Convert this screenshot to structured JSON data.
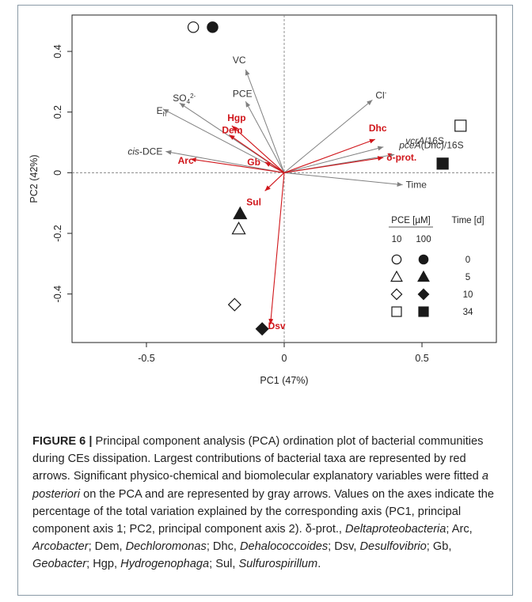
{
  "chart_data": {
    "type": "scatter",
    "xlabel": "PC1 (47%)",
    "ylabel": "PC2 (42%)",
    "xlim": [
      -0.77,
      0.77
    ],
    "ylim": [
      -0.56,
      0.52
    ],
    "xticks": [
      -0.5,
      0,
      0.5
    ],
    "yticks": [
      -0.4,
      -0.2,
      0,
      0.2,
      0.4
    ],
    "xtick_labels": [
      "-0.5",
      "0",
      "0.5"
    ],
    "ytick_labels": [
      "-0.4",
      "-0.2",
      "0",
      "0.2",
      "0.4"
    ],
    "reference_lines": "dashed lines at x = 0 and y = 0",
    "samples": [
      {
        "pce": "10",
        "time": "0",
        "shape": "circle",
        "filled": false,
        "x": -0.33,
        "y": 0.48
      },
      {
        "pce": "100",
        "time": "0",
        "shape": "circle",
        "filled": true,
        "x": -0.26,
        "y": 0.48
      },
      {
        "pce": "100",
        "time": "5",
        "shape": "triangle",
        "filled": true,
        "x": -0.16,
        "y": -0.135
      },
      {
        "pce": "10",
        "time": "5",
        "shape": "triangle",
        "filled": false,
        "x": -0.165,
        "y": -0.185
      },
      {
        "pce": "10",
        "time": "10",
        "shape": "diamond",
        "filled": false,
        "x": -0.18,
        "y": -0.435
      },
      {
        "pce": "100",
        "time": "10",
        "shape": "diamond",
        "filled": true,
        "x": -0.08,
        "y": -0.515
      },
      {
        "pce": "10",
        "time": "34",
        "shape": "square",
        "filled": false,
        "x": 0.64,
        "y": 0.155
      },
      {
        "pce": "100",
        "time": "34",
        "shape": "square",
        "filled": true,
        "x": 0.575,
        "y": 0.03
      }
    ],
    "taxa_arrows": [
      {
        "label": "Hgp",
        "x": -0.19,
        "y": 0.155
      },
      {
        "label": "Dem",
        "x": -0.2,
        "y": 0.125
      },
      {
        "label": "Arc",
        "x": -0.34,
        "y": 0.045
      },
      {
        "label": "Gb",
        "x": -0.07,
        "y": 0.035
      },
      {
        "label": "Sul",
        "x": -0.07,
        "y": -0.06
      },
      {
        "label": "Dhc",
        "x": 0.33,
        "y": 0.11
      },
      {
        "label": "δ-prot.",
        "x": 0.36,
        "y": 0.05
      },
      {
        "label": "Dsv",
        "x": -0.05,
        "y": -0.5
      }
    ],
    "variable_arrows": [
      {
        "label": "VC",
        "x": -0.14,
        "y": 0.34
      },
      {
        "label": "PCE",
        "x": -0.14,
        "y": 0.235
      },
      {
        "label": "SO4 2-",
        "x": -0.38,
        "y": 0.23
      },
      {
        "label": "Eh",
        "x": -0.44,
        "y": 0.21
      },
      {
        "label": "cis-DCE",
        "x": -0.43,
        "y": 0.07
      },
      {
        "label": "Cl-",
        "x": 0.32,
        "y": 0.24
      },
      {
        "label": "vcrA/16S",
        "x": 0.36,
        "y": 0.085
      },
      {
        "label": "pceA(Dhc)/16S",
        "x": 0.4,
        "y": 0.06
      },
      {
        "label": "Time",
        "x": 0.43,
        "y": -0.04
      }
    ],
    "legend": {
      "position": "bottom-right",
      "col_pce": "PCE [µM]",
      "col_time": "Time [d]",
      "pce_levels": [
        "10",
        "100"
      ],
      "rows": [
        {
          "shape": "circle",
          "time": "0"
        },
        {
          "shape": "triangle",
          "time": "5"
        },
        {
          "shape": "diamond",
          "time": "10"
        },
        {
          "shape": "square",
          "time": "34"
        }
      ]
    },
    "colors": {
      "taxa": "#d0161b",
      "variables": "#808080",
      "points": "#1a1a1a",
      "frame": "#222222"
    }
  },
  "caption": {
    "label": "FIGURE 6 |",
    "text_1": " Principal component analysis (PCA) ordination plot of bacterial communities during CEs dissipation. Largest contributions of bacterial taxa are represented by red arrows. Significant physico-chemical and biomolecular explanatory variables were fitted ",
    "text_italic_1": "a posteriori",
    "text_2": " on the PCA and are represented by gray arrows. Values on the axes indicate the percentage of the total variation explained by the corresponding axis (PC1, principal component axis 1; PC2, principal component axis 2). δ-prot., ",
    "taxon_1": "Deltaproteobacteria",
    "sep_1": "; Arc, ",
    "taxon_2": "Arcobacter",
    "sep_2": "; Dem, ",
    "taxon_3": "Dechloromonas",
    "sep_3": "; Dhc, ",
    "taxon_4": "Dehalococcoides",
    "sep_4": "; Dsv, ",
    "taxon_5": "Desulfovibrio",
    "sep_5": "; Gb, ",
    "taxon_6": "Geobacter",
    "sep_6": "; Hgp, ",
    "taxon_7": "Hydrogenophaga",
    "sep_7": "; Sul, ",
    "taxon_8": "Sulfurospirillum",
    "end": "."
  }
}
